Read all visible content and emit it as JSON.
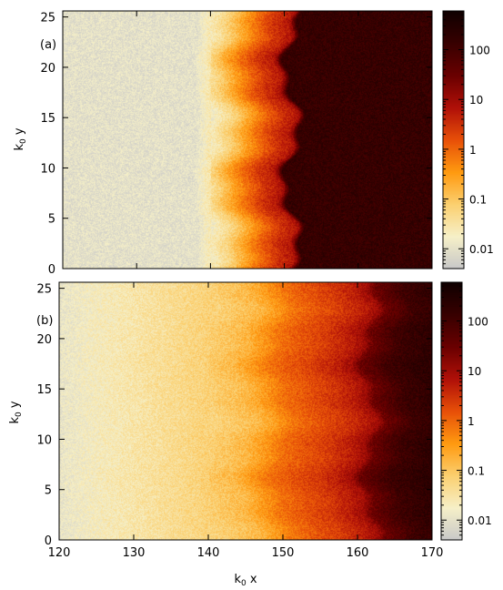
{
  "chart_data": [
    {
      "type": "heatmap",
      "panel_label": "(a)",
      "xlabel": "",
      "ylabel_base": "k",
      "ylabel_sub": "0",
      "ylabel_rest": " y",
      "xlim": [
        120,
        170
      ],
      "ylim": [
        0,
        25.6
      ],
      "x_ticks": [
        120,
        130,
        140,
        150,
        160,
        170
      ],
      "y_ticks": [
        "0",
        "5",
        "10",
        "15",
        "20",
        "25"
      ],
      "colorbar": {
        "scale": "log",
        "range": [
          0.004,
          600
        ],
        "tick_labels": [
          "0.01",
          "0.1",
          "1",
          "10",
          "100"
        ]
      },
      "profile": [
        [
          120,
          0.01
        ],
        [
          138,
          0.01
        ],
        [
          140,
          0.03
        ],
        [
          142,
          0.08
        ],
        [
          144,
          0.3
        ],
        [
          146,
          1.0
        ],
        [
          148,
          3.0
        ],
        [
          150,
          6.0
        ],
        [
          150.5,
          12
        ],
        [
          151.2,
          150
        ],
        [
          170,
          150
        ]
      ],
      "colormap": [
        "#c8c8c8",
        "#f6f0c8",
        "#fbd070",
        "#ff9a10",
        "#e85008",
        "#b01008",
        "#6a0000",
        "#380000",
        "#100000"
      ]
    },
    {
      "type": "heatmap",
      "panel_label": "(b)",
      "xlabel_base": "k",
      "xlabel_sub": "0",
      "xlabel_rest": " x",
      "ylabel_base": "k",
      "ylabel_sub": "0",
      "ylabel_rest": " y",
      "xlim": [
        120,
        170
      ],
      "ylim": [
        0,
        25.6
      ],
      "x_ticks": [
        "120",
        "130",
        "140",
        "150",
        "160",
        "170"
      ],
      "y_ticks": [
        "0",
        "5",
        "10",
        "15",
        "20",
        "25"
      ],
      "colorbar": {
        "scale": "log",
        "range": [
          0.004,
          600
        ],
        "tick_labels": [
          "0.01",
          "0.1",
          "1",
          "10",
          "100"
        ]
      },
      "profile": [
        [
          120,
          0.012
        ],
        [
          125,
          0.02
        ],
        [
          130,
          0.03
        ],
        [
          135,
          0.045
        ],
        [
          140,
          0.07
        ],
        [
          145,
          0.15
        ],
        [
          148,
          0.4
        ],
        [
          150,
          0.8
        ],
        [
          153,
          1.5
        ],
        [
          156,
          2.5
        ],
        [
          159,
          5
        ],
        [
          161,
          10
        ],
        [
          162,
          30
        ],
        [
          164,
          60
        ],
        [
          166,
          120
        ],
        [
          170,
          200
        ]
      ],
      "colormap": [
        "#c8c8c8",
        "#f6f0c8",
        "#fbd070",
        "#ff9a10",
        "#e85008",
        "#b01008",
        "#6a0000",
        "#380000",
        "#100000"
      ]
    }
  ]
}
